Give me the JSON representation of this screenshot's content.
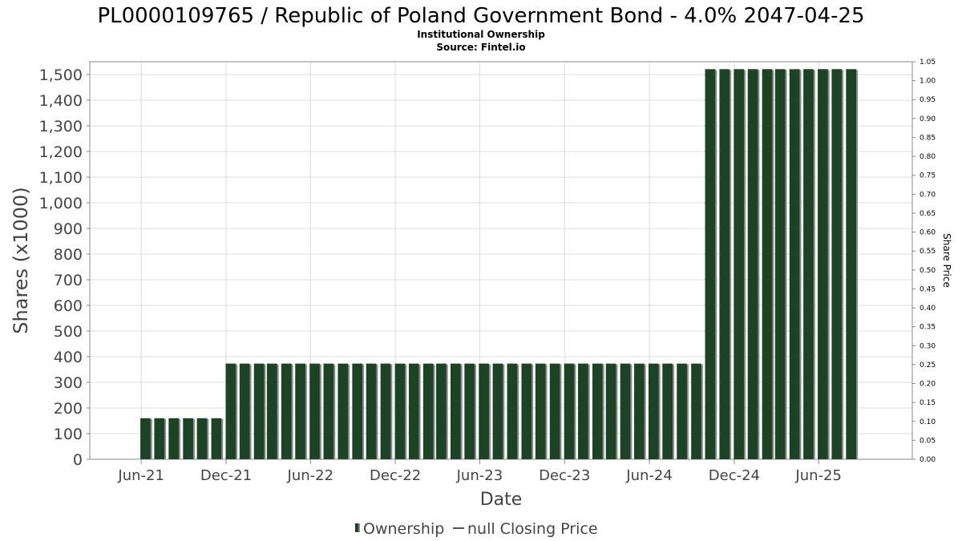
{
  "chart_data": {
    "type": "bar",
    "title": "PL0000109765 / Republic of Poland Government Bond - 4.0% 2047-04-25",
    "subtitle_lines": [
      "Institutional Ownership",
      "Source: Fintel.io"
    ],
    "xlabel": "Date",
    "ylabel": "Shares (x1000)",
    "y2label": "Share Price",
    "ylim": [
      0,
      1550
    ],
    "y2lim": [
      0,
      1.05
    ],
    "yticks": [
      0,
      100,
      200,
      300,
      400,
      500,
      600,
      700,
      800,
      900,
      1000,
      1100,
      1200,
      1300,
      1400,
      1500
    ],
    "ytick_labels": [
      "0",
      "100",
      "200",
      "300",
      "400",
      "500",
      "600",
      "700",
      "800",
      "900",
      "1,000",
      "1,100",
      "1,200",
      "1,300",
      "1,400",
      "1,500"
    ],
    "y2ticks": [
      0,
      0.05,
      0.1,
      0.15,
      0.2,
      0.25,
      0.3,
      0.35,
      0.4,
      0.45,
      0.5,
      0.55,
      0.6,
      0.65,
      0.7,
      0.75,
      0.8,
      0.85,
      0.9,
      0.95,
      1.0,
      1.05
    ],
    "y2tick_labels": [
      "0.00",
      "0.05",
      "0.10",
      "0.15",
      "0.20",
      "0.25",
      "0.30",
      "0.35",
      "0.40",
      "0.45",
      "0.50",
      "0.55",
      "0.60",
      "0.65",
      "0.70",
      "0.75",
      "0.80",
      "0.85",
      "0.90",
      "0.95",
      "1.00",
      "1.05"
    ],
    "xlim": [
      "2021-02-10",
      "2025-12-20"
    ],
    "xticks": [
      {
        "date": "2021-06-01",
        "label": "Jun-21"
      },
      {
        "date": "2021-12-01",
        "label": "Dec-21"
      },
      {
        "date": "2022-06-01",
        "label": "Jun-22"
      },
      {
        "date": "2022-12-01",
        "label": "Dec-22"
      },
      {
        "date": "2023-06-01",
        "label": "Jun-23"
      },
      {
        "date": "2023-12-01",
        "label": "Dec-23"
      },
      {
        "date": "2024-06-01",
        "label": "Jun-24"
      },
      {
        "date": "2024-12-01",
        "label": "Dec-24"
      },
      {
        "date": "2025-06-01",
        "label": "Jun-25"
      }
    ],
    "grid": true,
    "legend_position": "bottom",
    "series": [
      {
        "name": "Ownership",
        "color": "#1c4424",
        "shadow_color": "#8a8a8a",
        "x": [
          "2021-05-12",
          "2021-06-10",
          "2021-07-10",
          "2021-08-10",
          "2021-09-10",
          "2021-10-10",
          "2021-11-10",
          "2021-12-11",
          "2022-01-10",
          "2022-02-10",
          "2022-03-10",
          "2022-04-10",
          "2022-05-10",
          "2022-06-10",
          "2022-07-10",
          "2022-08-10",
          "2022-09-10",
          "2022-10-10",
          "2022-11-10",
          "2022-12-11",
          "2023-01-10",
          "2023-02-10",
          "2023-03-10",
          "2023-04-10",
          "2023-05-10",
          "2023-06-10",
          "2023-07-10",
          "2023-08-10",
          "2023-09-10",
          "2023-10-10",
          "2023-11-10",
          "2023-12-11",
          "2024-01-10",
          "2024-02-10",
          "2024-03-10",
          "2024-04-10",
          "2024-05-10",
          "2024-06-10",
          "2024-07-10",
          "2024-08-10",
          "2024-09-10",
          "2024-10-10",
          "2024-11-10",
          "2024-12-11",
          "2025-01-10",
          "2025-02-10",
          "2025-03-10",
          "2025-04-10",
          "2025-05-10",
          "2025-06-10",
          "2025-07-10",
          "2025-08-10"
        ],
        "values": [
          0,
          160,
          160,
          160,
          160,
          160,
          160,
          373,
          373,
          373,
          373,
          373,
          373,
          373,
          373,
          373,
          373,
          373,
          373,
          373,
          373,
          373,
          373,
          373,
          373,
          373,
          373,
          373,
          373,
          373,
          373,
          373,
          373,
          373,
          373,
          373,
          373,
          373,
          373,
          373,
          373,
          1521,
          1521,
          1521,
          1521,
          1521,
          1521,
          1521,
          1521,
          1521,
          1521,
          1521
        ]
      },
      {
        "name": "null Closing Price",
        "color": "#555555",
        "values": []
      }
    ]
  }
}
